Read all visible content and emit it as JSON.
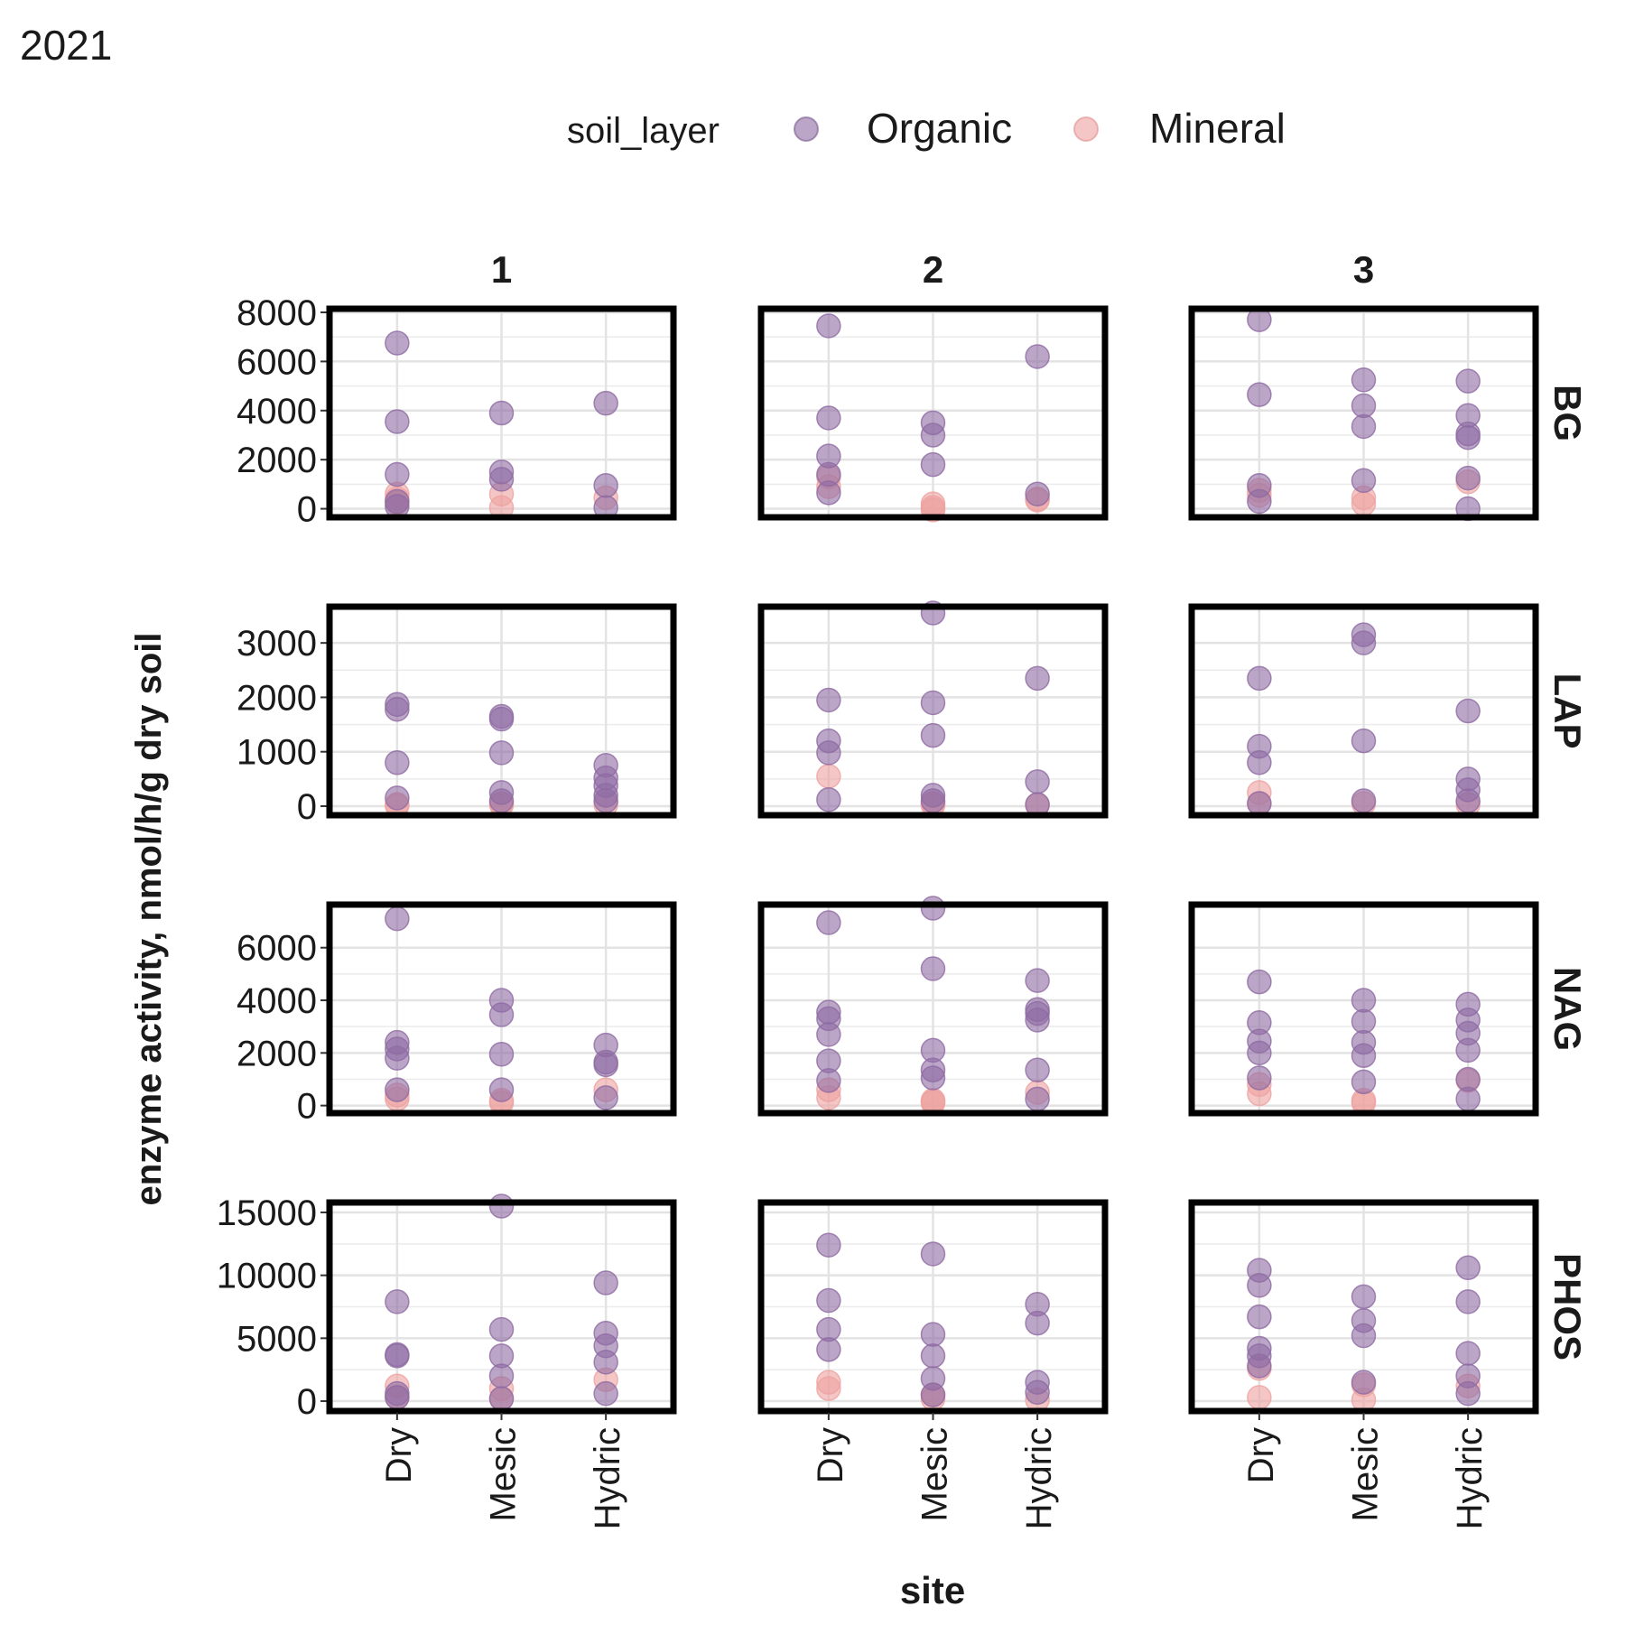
{
  "chart_data": {
    "type": "scatter",
    "title": "2021",
    "xlabel": "site",
    "ylabel": "enzyme activity, nmol/h/g dry soil",
    "categories": [
      "Dry",
      "Mesic",
      "Hydric"
    ],
    "legend": {
      "title": "soil_layer",
      "position": "top",
      "entries": [
        {
          "name": "Organic",
          "color": "#8E6AA3"
        },
        {
          "name": "Mineral",
          "color": "#EDA2A0"
        }
      ]
    },
    "grid": true,
    "columns": [
      "1",
      "2",
      "3"
    ],
    "rows": [
      {
        "name": "BG",
        "ylim": [
          -200,
          8000
        ],
        "ticks": [
          0,
          2000,
          4000,
          6000,
          8000
        ],
        "panels": [
          {
            "Organic": {
              "Dry": [
                6750,
                3550,
                1400,
                300,
                100
              ],
              "Mesic": [
                3900,
                1500,
                1200
              ],
              "Hydric": [
                4300,
                950,
                50
              ]
            },
            "Mineral": {
              "Dry": [
                600,
                400,
                250
              ],
              "Mesic": [
                600,
                50
              ],
              "Hydric": [
                450
              ]
            }
          },
          {
            "Organic": {
              "Dry": [
                7450,
                3700,
                2150,
                1400,
                650
              ],
              "Mesic": [
                3500,
                3000,
                1800
              ],
              "Hydric": [
                6200,
                600
              ]
            },
            "Mineral": {
              "Dry": [
                1300,
                900
              ],
              "Mesic": [
                200,
                50,
                -50
              ],
              "Hydric": [
                400,
                350
              ]
            }
          },
          {
            "Organic": {
              "Dry": [
                7700,
                4650,
                950,
                300
              ],
              "Mesic": [
                5250,
                4200,
                3350,
                1150
              ],
              "Hydric": [
                5200,
                3800,
                3050,
                2900,
                1250,
                0
              ]
            },
            "Mineral": {
              "Dry": [
                750,
                550
              ],
              "Mesic": [
                450,
                200
              ],
              "Hydric": [
                1100
              ]
            }
          }
        ]
      },
      {
        "name": "LAP",
        "ylim": [
          -100,
          3600
        ],
        "ticks": [
          0,
          1000,
          2000,
          3000
        ],
        "panels": [
          {
            "Organic": {
              "Dry": [
                1870,
                1780,
                800,
                150
              ],
              "Mesic": [
                1650,
                1600,
                980,
                250,
                100
              ],
              "Hydric": [
                750,
                520,
                380,
                200,
                100
              ]
            },
            "Mineral": {
              "Dry": [
                30,
                10
              ],
              "Mesic": [
                50,
                20
              ],
              "Hydric": [
                30
              ]
            }
          },
          {
            "Organic": {
              "Dry": [
                1950,
                1200,
                980,
                120
              ],
              "Mesic": [
                3550,
                1900,
                1300,
                200,
                100
              ],
              "Hydric": [
                2350,
                450,
                30
              ]
            },
            "Mineral": {
              "Dry": [
                550
              ],
              "Mesic": [
                50,
                20
              ],
              "Hydric": [
                20
              ]
            }
          },
          {
            "Organic": {
              "Dry": [
                2350,
                1100,
                800,
                50
              ],
              "Mesic": [
                3150,
                3000,
                1200,
                100
              ],
              "Hydric": [
                1750,
                500,
                300,
                100
              ]
            },
            "Mineral": {
              "Dry": [
                250,
                50
              ],
              "Mesic": [
                50
              ],
              "Hydric": [
                30
              ]
            }
          }
        ]
      },
      {
        "name": "NAG",
        "ylim": [
          -150,
          7500
        ],
        "ticks": [
          0,
          2000,
          4000,
          6000
        ],
        "panels": [
          {
            "Organic": {
              "Dry": [
                7100,
                2400,
                2150,
                1800,
                600
              ],
              "Mesic": [
                4000,
                3450,
                1950,
                600
              ],
              "Hydric": [
                2300,
                1650,
                1550,
                300
              ]
            },
            "Mineral": {
              "Dry": [
                400,
                250
              ],
              "Mesic": [
                200,
                100
              ],
              "Hydric": [
                600
              ]
            }
          },
          {
            "Organic": {
              "Dry": [
                6950,
                3550,
                3300,
                2700,
                1700,
                950
              ],
              "Mesic": [
                7500,
                5200,
                2100,
                1350,
                1050
              ],
              "Hydric": [
                4750,
                3650,
                3500,
                3250,
                1350,
                250
              ]
            },
            "Mineral": {
              "Dry": [
                600,
                300
              ],
              "Mesic": [
                200,
                150,
                100
              ],
              "Hydric": [
                500
              ]
            }
          },
          {
            "Organic": {
              "Dry": [
                4700,
                3150,
                2450,
                2000,
                1050
              ],
              "Mesic": [
                4000,
                3200,
                2400,
                1900,
                900
              ],
              "Hydric": [
                3850,
                3250,
                2750,
                2100,
                1000,
                250
              ]
            },
            "Mineral": {
              "Dry": [
                800,
                450
              ],
              "Mesic": [
                200,
                100
              ],
              "Hydric": [
                950
              ]
            }
          }
        ]
      },
      {
        "name": "PHOS",
        "ylim": [
          -500,
          15500
        ],
        "ticks": [
          0,
          5000,
          10000,
          15000
        ],
        "panels": [
          {
            "Organic": {
              "Dry": [
                7900,
                3700,
                3600,
                600,
                300
              ],
              "Mesic": [
                15500,
                5700,
                3600,
                2000,
                200
              ],
              "Hydric": [
                9400,
                5400,
                4400,
                3100,
                600
              ]
            },
            "Mineral": {
              "Dry": [
                1200,
                300
              ],
              "Mesic": [
                1000,
                200
              ],
              "Hydric": [
                1700
              ]
            }
          },
          {
            "Organic": {
              "Dry": [
                12400,
                8000,
                5700,
                4100
              ],
              "Mesic": [
                11700,
                5300,
                3600,
                1800,
                500
              ],
              "Hydric": [
                7700,
                6200,
                1500,
                700
              ]
            },
            "Mineral": {
              "Dry": [
                1500,
                1000
              ],
              "Mesic": [
                500,
                200
              ],
              "Hydric": [
                100
              ]
            }
          },
          {
            "Organic": {
              "Dry": [
                10400,
                9200,
                6700,
                4200,
                3600,
                2800
              ],
              "Mesic": [
                8300,
                6400,
                5200,
                1500
              ],
              "Hydric": [
                10600,
                7900,
                3800,
                2000,
                600
              ]
            },
            "Mineral": {
              "Dry": [
                2600,
                300
              ],
              "Mesic": [
                1300,
                100
              ],
              "Hydric": [
                1200
              ]
            }
          }
        ]
      }
    ]
  }
}
